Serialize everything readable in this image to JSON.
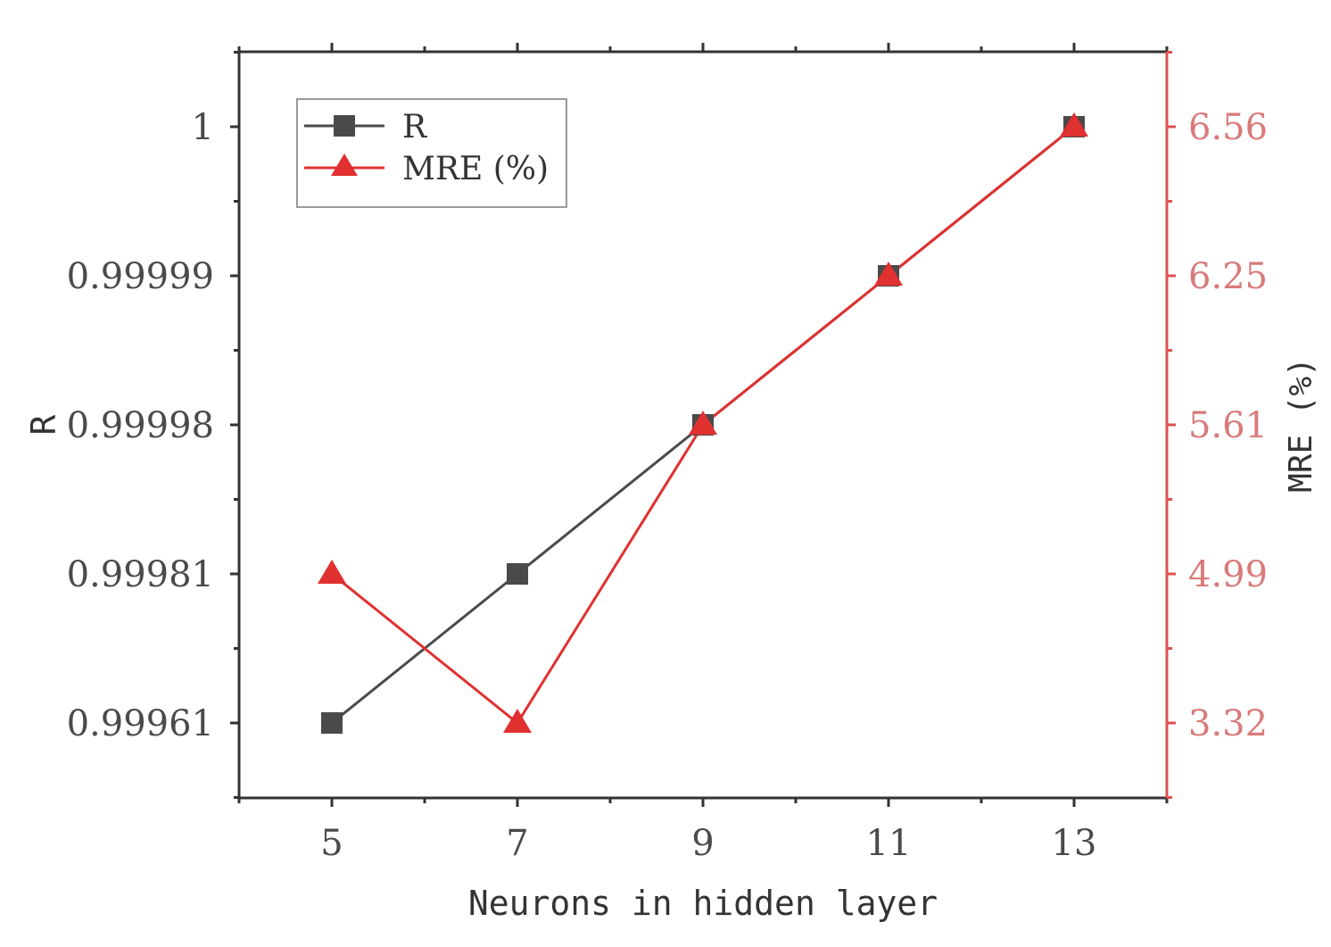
{
  "chart_data": {
    "type": "line",
    "title": "",
    "xlabel": "Neurons in hidden layer",
    "ylabel_left": "R",
    "ylabel_right": "MRE (%)",
    "x": [
      5,
      7,
      9,
      11,
      13
    ],
    "x_ticks": [
      "5",
      "7",
      "9",
      "11",
      "13"
    ],
    "y_left_ticks": [
      "0.99961",
      "0.99981",
      "0.99998",
      "0.99999",
      "1"
    ],
    "y_right_ticks": [
      "3.32",
      "4.99",
      "5.61",
      "6.25",
      "6.56"
    ],
    "axis_note": "Tick labels are unevenly valued but evenly spaced; points are placed at their tick level.",
    "series": [
      {
        "name": "R",
        "axis": "left",
        "marker": "square",
        "color": "#4a4a4a",
        "values": [
          0.99961,
          0.99981,
          0.99998,
          0.99999,
          1
        ]
      },
      {
        "name": "MRE (%)",
        "axis": "right",
        "marker": "triangle",
        "color": "#e03030",
        "values": [
          4.99,
          3.32,
          5.61,
          6.25,
          6.56
        ]
      }
    ],
    "legend": {
      "position": "top-left",
      "entries": [
        "R",
        "MRE (%)"
      ]
    },
    "grid": false
  }
}
